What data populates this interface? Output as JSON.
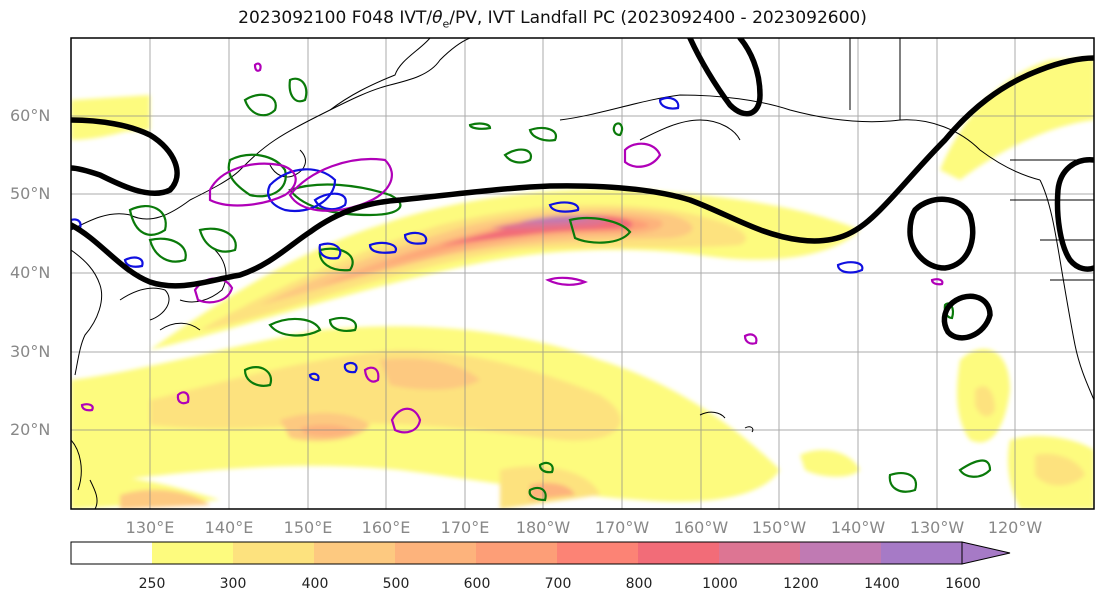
{
  "title": {
    "prefix": "2023092100 F048 IVT/",
    "theta": "θ",
    "theta_sub": "e",
    "suffix": "/PV, IVT Landfall PC (2023092400 - 2023092600)"
  },
  "map": {
    "lat_labels": [
      "60°N",
      "50°N",
      "40°N",
      "30°N",
      "20°N"
    ],
    "lon_labels": [
      "130°E",
      "140°E",
      "150°E",
      "160°E",
      "170°E",
      "180°W",
      "170°W",
      "160°W",
      "150°W",
      "140°W",
      "130°W",
      "120°W"
    ]
  },
  "colorbar": {
    "labels": [
      "250",
      "300",
      "400",
      "500",
      "600",
      "700",
      "800",
      "1000",
      "1200",
      "1400",
      "1600"
    ],
    "colors": [
      "#ffffff",
      "#fdfb7e",
      "#fde27e",
      "#fdc980",
      "#fdb37c",
      "#fd9e77",
      "#fc8375",
      "#f26c78",
      "#dd7593",
      "#c07ab3",
      "#a67ac6"
    ]
  },
  "legend_colors": {
    "contour_black": "#000000",
    "theta_green": "#0a7a0a",
    "pv_blue": "#1010e0",
    "magenta": "#b000b8"
  }
}
